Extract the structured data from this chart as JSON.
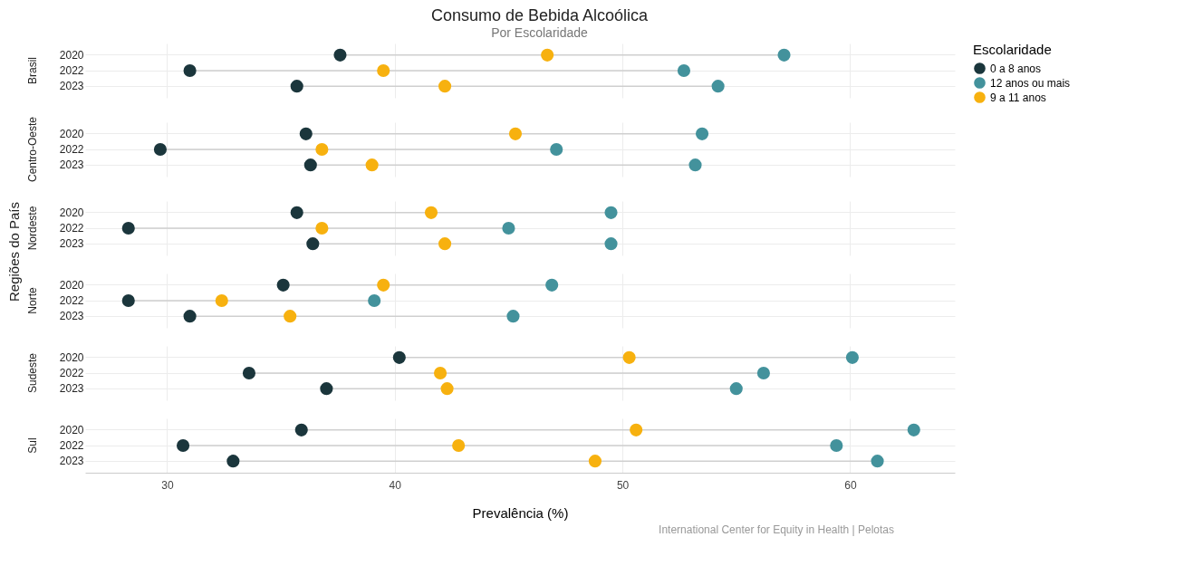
{
  "chart_data": [
    {
      "type": "scatter",
      "title": "Consumo de Bebida Alcoólica",
      "legend_title": "Escolaridade",
      "legend": "right",
      "subtitle": "Por Escolaridade",
      "orientation": "horizontal",
      "categories": [
        "2020",
        "2022",
        "2023"
      ],
      "xlim": [
        26.4,
        64.6
      ],
      "xticks": [
        30,
        40,
        50,
        60
      ],
      "grid": true,
      "marker": "circle",
      "tick_labels": "y",
      "annotations": [
        "Brasil",
        "Regiões do País"
      ],
      "series": [
        {
          "name": "0  a 8 anos",
          "color": "#1b363c",
          "values": [
            37.6,
            31.0,
            35.7
          ]
        },
        {
          "name": "12 anos ou mais",
          "color": "#43929c",
          "values": [
            57.1,
            52.7,
            54.2
          ]
        },
        {
          "name": "9 a 11 anos",
          "color": "#f7b10f",
          "values": [
            46.7,
            39.5,
            42.2
          ]
        }
      ]
    },
    {
      "type": "scatter",
      "orientation": "horizontal",
      "categories": [
        "2020",
        "2022",
        "2023"
      ],
      "xlim": [
        26.4,
        64.6
      ],
      "xticks": [
        30,
        40,
        50,
        60
      ],
      "grid": true,
      "marker": "circle",
      "tick_labels": "y",
      "annotations": [
        "Centro-Oeste"
      ],
      "series": [
        {
          "name": "0  a 8 anos",
          "color": "#1b363c",
          "values": [
            36.1,
            29.7,
            36.3
          ]
        },
        {
          "name": "12 anos ou mais",
          "color": "#43929c",
          "values": [
            53.5,
            47.1,
            53.2
          ]
        },
        {
          "name": "9 a 11 anos",
          "color": "#f7b10f",
          "values": [
            45.3,
            36.8,
            39.0
          ]
        }
      ]
    },
    {
      "type": "scatter",
      "orientation": "horizontal",
      "categories": [
        "2020",
        "2022",
        "2023"
      ],
      "xlim": [
        26.4,
        64.6
      ],
      "xticks": [
        30,
        40,
        50,
        60
      ],
      "grid": true,
      "marker": "circle",
      "tick_labels": "y",
      "annotations": [
        "Nordeste"
      ],
      "series": [
        {
          "name": "0  a 8 anos",
          "color": "#1b363c",
          "values": [
            35.7,
            28.3,
            36.4
          ]
        },
        {
          "name": "12 anos ou mais",
          "color": "#43929c",
          "values": [
            49.5,
            45.0,
            49.5
          ]
        },
        {
          "name": "9 a 11 anos",
          "color": "#f7b10f",
          "values": [
            41.6,
            36.8,
            42.2
          ]
        }
      ]
    },
    {
      "type": "scatter",
      "orientation": "horizontal",
      "categories": [
        "2020",
        "2022",
        "2023"
      ],
      "xlim": [
        26.4,
        64.6
      ],
      "xticks": [
        30,
        40,
        50,
        60
      ],
      "grid": true,
      "marker": "circle",
      "tick_labels": "y",
      "annotations": [
        "Norte"
      ],
      "series": [
        {
          "name": "0  a 8 anos",
          "color": "#1b363c",
          "values": [
            35.1,
            28.3,
            31.0
          ]
        },
        {
          "name": "12 anos ou mais",
          "color": "#43929c",
          "values": [
            46.9,
            39.1,
            45.2
          ]
        },
        {
          "name": "9 a 11 anos",
          "color": "#f7b10f",
          "values": [
            39.5,
            32.4,
            35.4
          ]
        }
      ]
    },
    {
      "type": "scatter",
      "orientation": "horizontal",
      "categories": [
        "2020",
        "2022",
        "2023"
      ],
      "xlim": [
        26.4,
        64.6
      ],
      "xticks": [
        30,
        40,
        50,
        60
      ],
      "grid": true,
      "marker": "circle",
      "tick_labels": "y",
      "annotations": [
        "Sudeste"
      ],
      "series": [
        {
          "name": "0  a 8 anos",
          "color": "#1b363c",
          "values": [
            40.2,
            33.6,
            37.0
          ]
        },
        {
          "name": "12 anos ou mais",
          "color": "#43929c",
          "values": [
            60.1,
            56.2,
            55.0
          ]
        },
        {
          "name": "9 a 11 anos",
          "color": "#f7b10f",
          "values": [
            50.3,
            42.0,
            42.3
          ]
        }
      ]
    },
    {
      "type": "scatter",
      "orientation": "horizontal",
      "categories": [
        "2020",
        "2022",
        "2023"
      ],
      "xlim": [
        26.4,
        64.6
      ],
      "xticks": [
        30,
        40,
        50,
        60
      ],
      "grid": true,
      "marker": "circle",
      "xlabel": "Prevalência (%)",
      "annotations": [
        "Sul",
        "International Center for Equity in Health | Pelotas"
      ],
      "series": [
        {
          "name": "0  a 8 anos",
          "color": "#1b363c",
          "values": [
            35.9,
            30.7,
            32.9
          ]
        },
        {
          "name": "12 anos ou mais",
          "color": "#43929c",
          "values": [
            62.8,
            59.4,
            61.2
          ]
        },
        {
          "name": "9 a 11 anos",
          "color": "#f7b10f",
          "values": [
            50.6,
            42.8,
            48.8
          ]
        }
      ]
    }
  ]
}
